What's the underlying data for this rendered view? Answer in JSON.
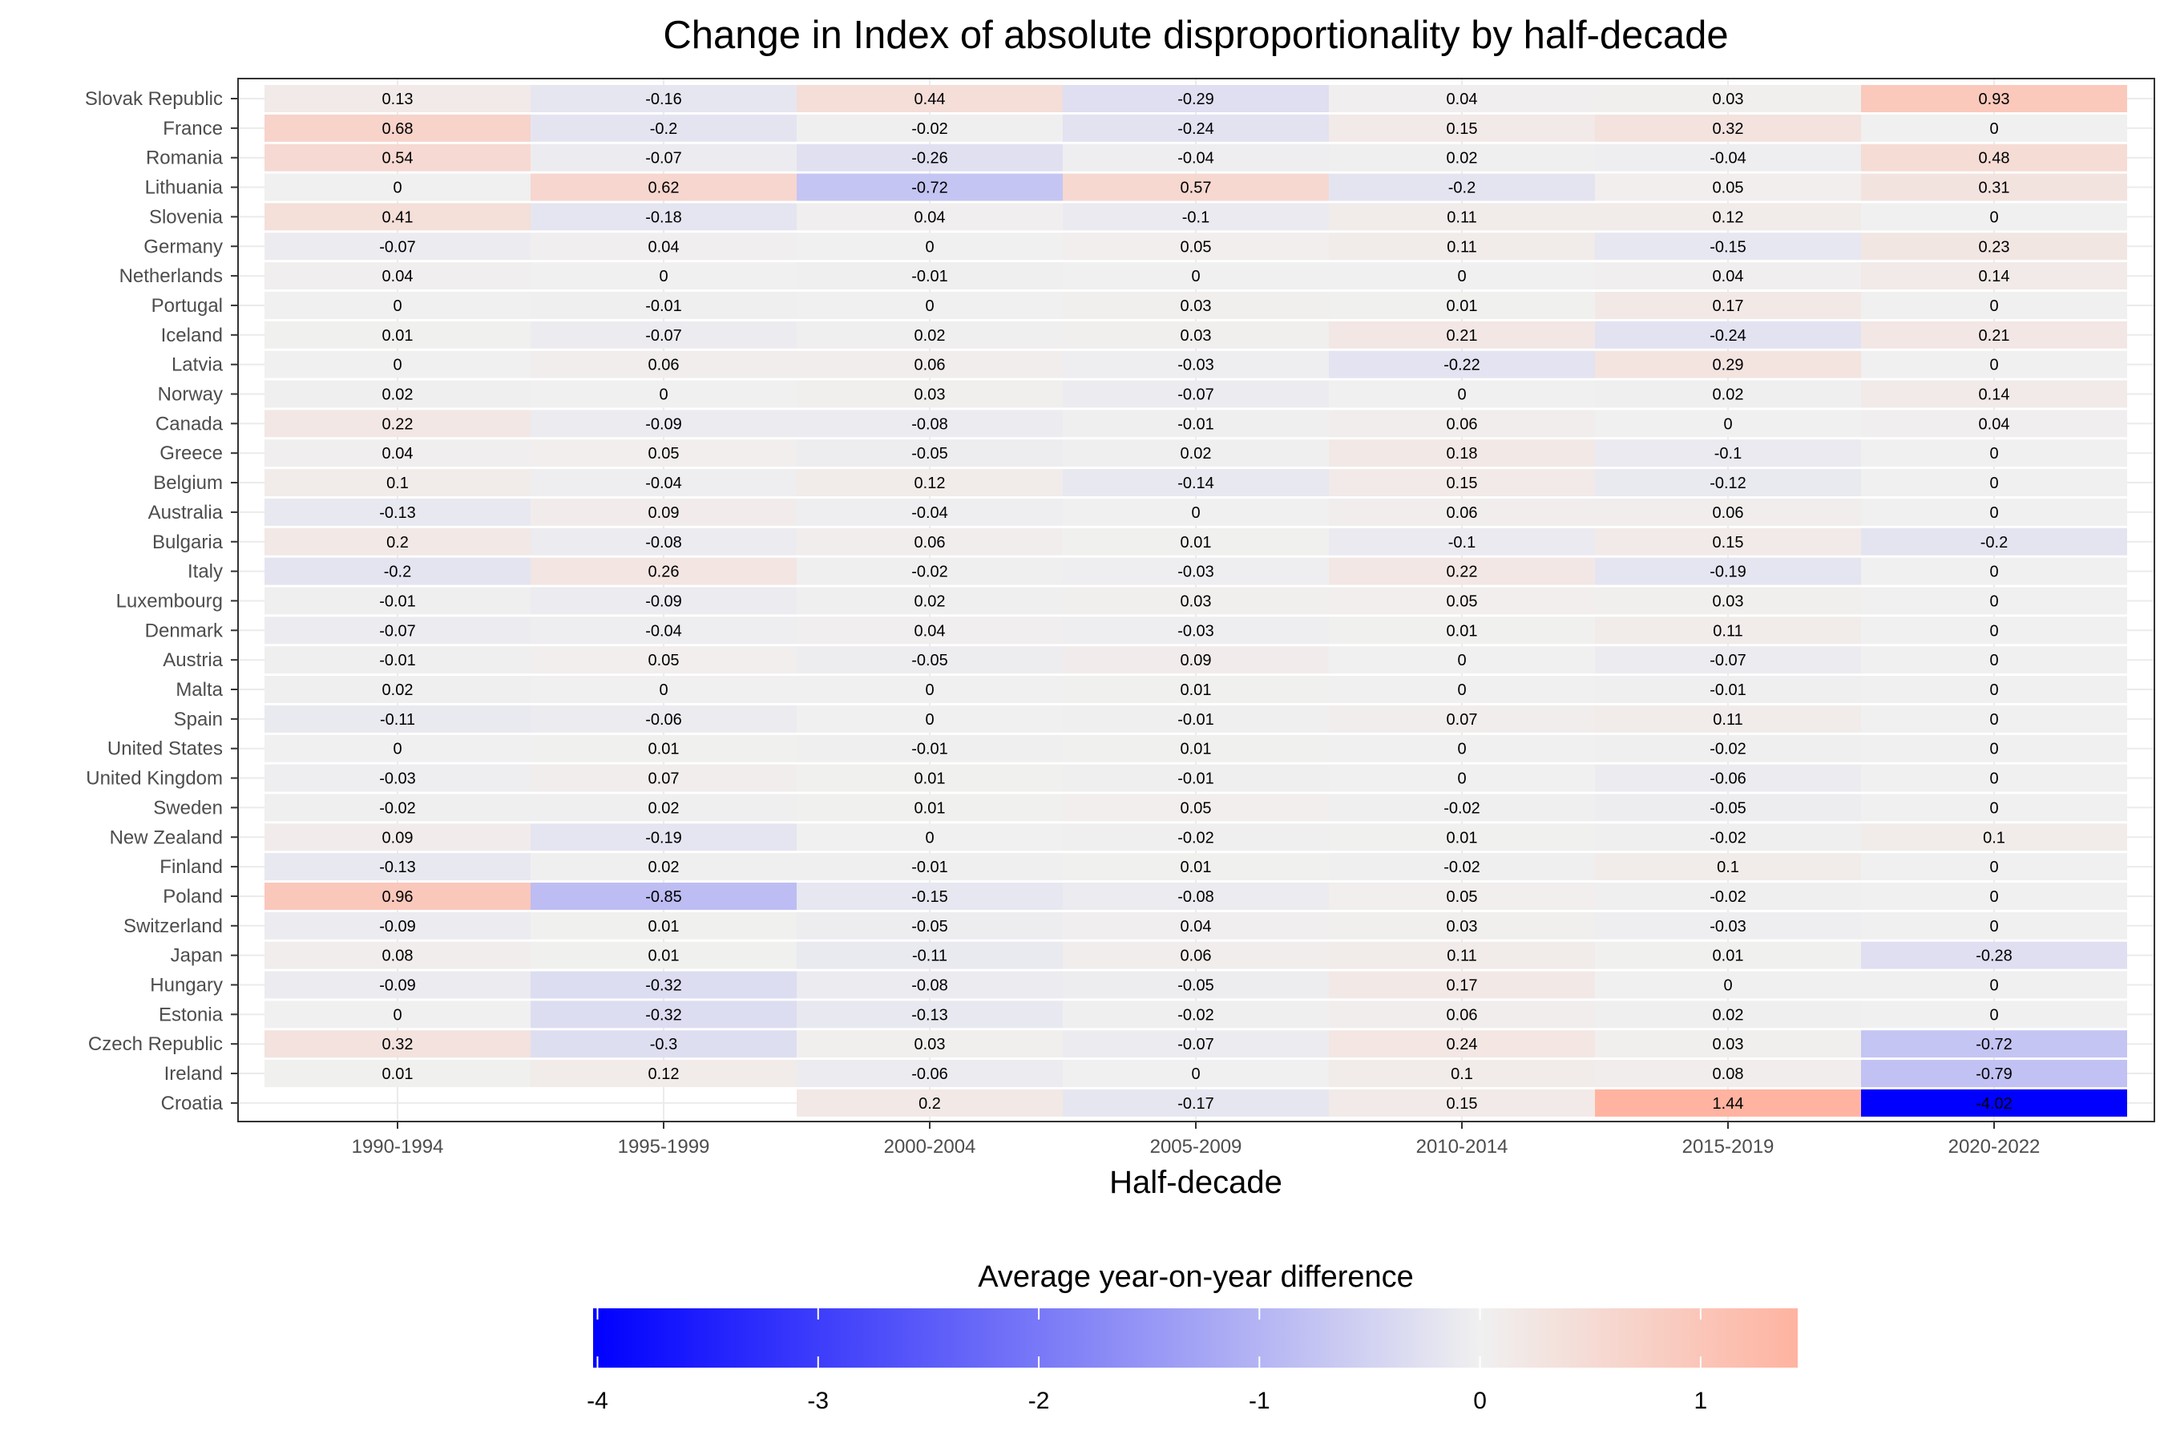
{
  "chart_data": {
    "type": "heatmap",
    "title": "Change in Index of absolute disproportionality by half-decade",
    "xlabel": "Half-decade",
    "ylabel": "",
    "x": [
      "1990-1994",
      "1995-1999",
      "2000-2004",
      "2005-2009",
      "2010-2014",
      "2015-2019",
      "2020-2022"
    ],
    "y": [
      "Slovak Republic",
      "France",
      "Romania",
      "Lithuania",
      "Slovenia",
      "Germany",
      "Netherlands",
      "Portugal",
      "Iceland",
      "Latvia",
      "Norway",
      "Canada",
      "Greece",
      "Belgium",
      "Australia",
      "Bulgaria",
      "Italy",
      "Luxembourg",
      "Denmark",
      "Austria",
      "Malta",
      "Spain",
      "United States",
      "United Kingdom",
      "Sweden",
      "New Zealand",
      "Finland",
      "Poland",
      "Switzerland",
      "Japan",
      "Hungary",
      "Estonia",
      "Czech Republic",
      "Ireland",
      "Croatia"
    ],
    "values": [
      [
        0.13,
        -0.16,
        0.44,
        -0.29,
        0.04,
        0.03,
        0.93
      ],
      [
        0.68,
        -0.2,
        -0.02,
        -0.24,
        0.15,
        0.32,
        0
      ],
      [
        0.54,
        -0.07,
        -0.26,
        -0.04,
        0.02,
        -0.04,
        0.48
      ],
      [
        0,
        0.62,
        -0.72,
        0.57,
        -0.2,
        0.05,
        0.31
      ],
      [
        0.41,
        -0.18,
        0.04,
        -0.1,
        0.11,
        0.12,
        0
      ],
      [
        -0.07,
        0.04,
        0,
        0.05,
        0.11,
        -0.15,
        0.23
      ],
      [
        0.04,
        0,
        -0.01,
        0,
        0,
        0.04,
        0.14
      ],
      [
        0,
        -0.01,
        0,
        0.03,
        0.01,
        0.17,
        0
      ],
      [
        0.01,
        -0.07,
        0.02,
        0.03,
        0.21,
        -0.24,
        0.21
      ],
      [
        0,
        0.06,
        0.06,
        -0.03,
        -0.22,
        0.29,
        0
      ],
      [
        0.02,
        0,
        0.03,
        -0.07,
        0,
        0.02,
        0.14
      ],
      [
        0.22,
        -0.09,
        -0.08,
        -0.01,
        0.06,
        0,
        0.04
      ],
      [
        0.04,
        0.05,
        -0.05,
        0.02,
        0.18,
        -0.1,
        0
      ],
      [
        0.1,
        -0.04,
        0.12,
        -0.14,
        0.15,
        -0.12,
        0
      ],
      [
        -0.13,
        0.09,
        -0.04,
        0,
        0.06,
        0.06,
        0
      ],
      [
        0.2,
        -0.08,
        0.06,
        0.01,
        -0.1,
        0.15,
        -0.2
      ],
      [
        -0.2,
        0.26,
        -0.02,
        -0.03,
        0.22,
        -0.19,
        0
      ],
      [
        -0.01,
        -0.09,
        0.02,
        0.03,
        0.05,
        0.03,
        0
      ],
      [
        -0.07,
        -0.04,
        0.04,
        -0.03,
        0.01,
        0.11,
        0
      ],
      [
        -0.01,
        0.05,
        -0.05,
        0.09,
        0,
        -0.07,
        0
      ],
      [
        0.02,
        0,
        0,
        0.01,
        0,
        -0.01,
        0
      ],
      [
        -0.11,
        -0.06,
        0,
        -0.01,
        0.07,
        0.11,
        0
      ],
      [
        0,
        0.01,
        -0.01,
        0.01,
        0,
        -0.02,
        0
      ],
      [
        -0.03,
        0.07,
        0.01,
        -0.01,
        0,
        -0.06,
        0
      ],
      [
        -0.02,
        0.02,
        0.01,
        0.05,
        -0.02,
        -0.05,
        0
      ],
      [
        0.09,
        -0.19,
        0,
        -0.02,
        0.01,
        -0.02,
        0.1
      ],
      [
        -0.13,
        0.02,
        -0.01,
        0.01,
        -0.02,
        0.1,
        0
      ],
      [
        0.96,
        -0.85,
        -0.15,
        -0.08,
        0.05,
        -0.02,
        0
      ],
      [
        -0.09,
        0.01,
        -0.05,
        0.04,
        0.03,
        -0.03,
        0
      ],
      [
        0.08,
        0.01,
        -0.11,
        0.06,
        0.11,
        0.01,
        -0.28
      ],
      [
        -0.09,
        -0.32,
        -0.08,
        -0.05,
        0.17,
        0,
        0
      ],
      [
        0,
        -0.32,
        -0.13,
        -0.02,
        0.06,
        0.02,
        0
      ],
      [
        0.32,
        -0.3,
        0.03,
        -0.07,
        0.24,
        0.03,
        -0.72
      ],
      [
        0.01,
        0.12,
        -0.06,
        0,
        0.1,
        0.08,
        -0.79
      ],
      [
        null,
        null,
        0.2,
        -0.17,
        0.15,
        1.44,
        -4.02
      ]
    ],
    "grid": true,
    "legend": {
      "title": "Average year-on-year difference",
      "placement": "bottom",
      "range": [
        -4.02,
        1.44
      ],
      "ticks": [
        -4,
        -3,
        -2,
        -1,
        0,
        1
      ],
      "tick_labels": [
        "-4",
        "-3",
        "-2",
        "-1",
        "0",
        "1"
      ],
      "colors": {
        "low": "#0000ff",
        "mid": "#f0f0f0",
        "high": "#ffb3a0"
      }
    }
  }
}
